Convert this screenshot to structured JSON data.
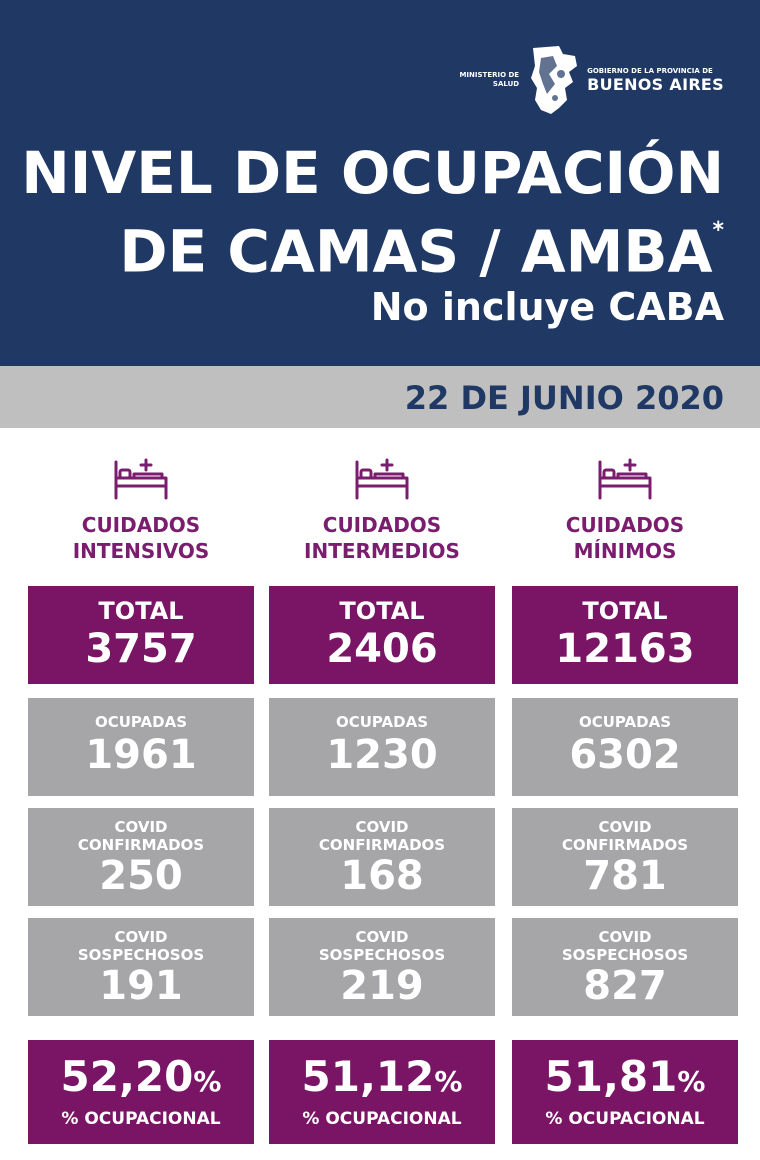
{
  "header": {
    "logo": {
      "ministerio_line1": "MINISTERIO DE",
      "ministerio_line2": "SALUD",
      "gobierno_line1": "GOBIERNO DE LA PROVINCIA DE",
      "gobierno_line2": "BUENOS AIRES",
      "icon": "buenos-aires-map-icon"
    },
    "title_line1": "NIVEL DE OCUPACIÓN",
    "title_line2": "DE CAMAS / AMBA",
    "title_asterisk": "*",
    "subtitle": "No incluye CABA"
  },
  "date": "22 DE JUNIO 2020",
  "colors": {
    "header_bg": "#1f3864",
    "date_bar_bg": "#bfbfbf",
    "purple": "#7a1566",
    "gray": "#a6a6a8",
    "category_text": "#7b1d6e"
  },
  "columns": [
    {
      "icon": "hospital-bed-icon",
      "category_line1": "CUIDADOS",
      "category_line2": "INTENSIVOS",
      "total_label": "TOTAL",
      "total": "3757",
      "ocupadas_label": "OCUPADAS",
      "ocupadas": "1961",
      "confirmados_label1": "COVID",
      "confirmados_label2": "CONFIRMADOS",
      "confirmados": "250",
      "sospechosos_label1": "COVID",
      "sospechosos_label2": "SOSPECHOSOS",
      "sospechosos": "191",
      "porcentaje": "52,20",
      "porcentaje_sign": "%",
      "porcentaje_label": "% OCUPACIONAL"
    },
    {
      "icon": "hospital-bed-icon",
      "category_line1": "CUIDADOS",
      "category_line2": "INTERMEDIOS",
      "total_label": "TOTAL",
      "total": "2406",
      "ocupadas_label": "OCUPADAS",
      "ocupadas": "1230",
      "confirmados_label1": "COVID",
      "confirmados_label2": "CONFIRMADOS",
      "confirmados": "168",
      "sospechosos_label1": "COVID",
      "sospechosos_label2": "SOSPECHOSOS",
      "sospechosos": "219",
      "porcentaje": "51,12",
      "porcentaje_sign": "%",
      "porcentaje_label": "% OCUPACIONAL"
    },
    {
      "icon": "hospital-bed-icon",
      "category_line1": "CUIDADOS",
      "category_line2": "MÍNIMOS",
      "total_label": "TOTAL",
      "total": "12163",
      "ocupadas_label": "OCUPADAS",
      "ocupadas": "6302",
      "confirmados_label1": "COVID",
      "confirmados_label2": "CONFIRMADOS",
      "confirmados": "781",
      "sospechosos_label1": "COVID",
      "sospechosos_label2": "SOSPECHOSOS",
      "sospechosos": "827",
      "porcentaje": "51,81",
      "porcentaje_sign": "%",
      "porcentaje_label": "% OCUPACIONAL"
    }
  ]
}
